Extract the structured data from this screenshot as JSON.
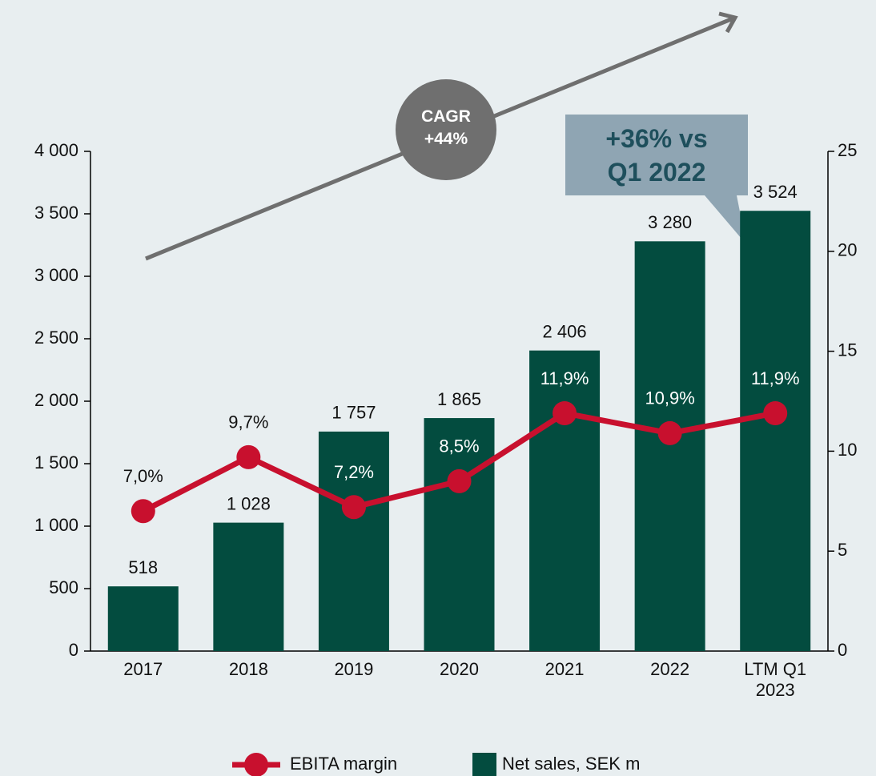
{
  "chart_data": {
    "type": "bar",
    "categories": [
      "2017",
      "2018",
      "2019",
      "2020",
      "2021",
      "2022",
      "LTM Q1 2023"
    ],
    "series": [
      {
        "name": "Net sales, SEK m",
        "type": "bar",
        "axis": "y",
        "color": "#034c3f",
        "values": [
          518,
          1028,
          1757,
          1865,
          2406,
          3280,
          3524
        ],
        "value_labels": [
          "518",
          "1 028",
          "1 757",
          "1 865",
          "2 406",
          "3 280",
          "3 524"
        ]
      },
      {
        "name": "EBITA margin",
        "type": "line",
        "axis": "y2",
        "color": "#c8102e",
        "values": [
          7.0,
          9.7,
          7.2,
          8.5,
          11.9,
          10.9,
          11.9
        ],
        "value_labels": [
          "7,0%",
          "9,7%",
          "7,2%",
          "8,5%",
          "11,9%",
          "10,9%",
          "11,9%"
        ]
      }
    ],
    "ylim": [
      0,
      4000
    ],
    "yticks": [
      0,
      500,
      {
        "value": 1000,
        "label": "1 000"
      },
      {
        "value": 1500,
        "label": "1 500"
      },
      {
        "value": 2000,
        "label": "2 000"
      },
      {
        "value": 2500,
        "label": "2 500"
      },
      {
        "value": 3000,
        "label": "3 000"
      },
      {
        "value": 3500,
        "label": "3 500"
      },
      {
        "value": 4000,
        "label": "4 000"
      }
    ],
    "y2lim": [
      0,
      25
    ],
    "y2ticks": [
      0,
      5,
      10,
      15,
      20,
      25
    ],
    "annotations": {
      "cagr": [
        "CAGR",
        "+44%"
      ],
      "callout": "+36% vs Q1 2022"
    },
    "legend": "bottom"
  }
}
